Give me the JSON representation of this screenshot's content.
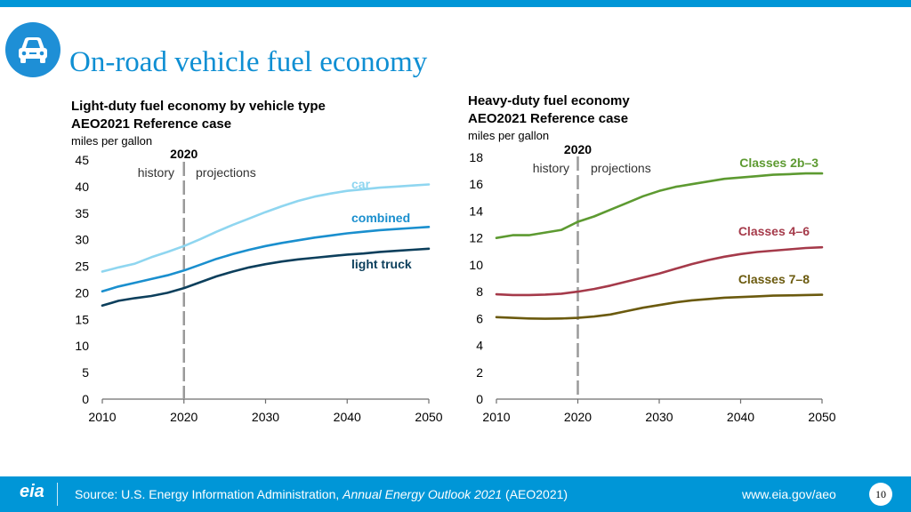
{
  "title": "On-road vehicle fuel economy",
  "light_header": {
    "line1": "Light-duty fuel economy by vehicle type",
    "line2": "AEO2021 Reference case",
    "units": "miles per gallon"
  },
  "heavy_header": {
    "line1": "Heavy-duty fuel economy",
    "line2": "AEO2021 Reference case",
    "units": "miles per gallon"
  },
  "colors": {
    "car": "#8fd6f0",
    "combined": "#1a8fce",
    "light_truck": "#0c3f5c",
    "classes_2b3": "#5d9a31",
    "classes_46": "#a53a4a",
    "classes_78": "#6b5a0e",
    "accent": "#0096d7"
  },
  "chart_data": [
    {
      "type": "line",
      "title": "Light-duty fuel economy by vehicle type",
      "ylabel": "miles per gallon",
      "x": [
        2010,
        2012,
        2014,
        2016,
        2018,
        2020,
        2022,
        2024,
        2026,
        2028,
        2030,
        2032,
        2034,
        2036,
        2038,
        2040,
        2042,
        2044,
        2046,
        2048,
        2050
      ],
      "xlim": [
        2010,
        2050
      ],
      "ylim": [
        0,
        45
      ],
      "xticks": [
        2010,
        2020,
        2030,
        2040,
        2050
      ],
      "yticks": [
        0,
        5,
        10,
        15,
        20,
        25,
        30,
        35,
        40,
        45
      ],
      "divider_year": 2020,
      "divider_label": "2020",
      "history_label": "history",
      "projections_label": "projections",
      "series": [
        {
          "name": "car",
          "color_key": "car",
          "values": [
            24.0,
            24.8,
            25.5,
            26.7,
            27.7,
            28.8,
            30.1,
            31.5,
            32.8,
            34.0,
            35.2,
            36.3,
            37.3,
            38.1,
            38.7,
            39.2,
            39.5,
            39.8,
            40.0,
            40.2,
            40.4
          ]
        },
        {
          "name": "combined",
          "color_key": "combined",
          "values": [
            20.3,
            21.2,
            21.9,
            22.6,
            23.3,
            24.2,
            25.3,
            26.4,
            27.3,
            28.1,
            28.8,
            29.4,
            29.9,
            30.4,
            30.8,
            31.2,
            31.5,
            31.8,
            32.0,
            32.2,
            32.4
          ]
        },
        {
          "name": "light truck",
          "color_key": "light_truck",
          "values": [
            17.6,
            18.5,
            19.0,
            19.4,
            20.0,
            20.9,
            22.0,
            23.1,
            24.0,
            24.8,
            25.4,
            25.9,
            26.3,
            26.6,
            26.9,
            27.2,
            27.4,
            27.7,
            27.9,
            28.1,
            28.3
          ]
        }
      ]
    },
    {
      "type": "line",
      "title": "Heavy-duty fuel economy",
      "ylabel": "miles per gallon",
      "x": [
        2010,
        2012,
        2014,
        2016,
        2018,
        2020,
        2022,
        2024,
        2026,
        2028,
        2030,
        2032,
        2034,
        2036,
        2038,
        2040,
        2042,
        2044,
        2046,
        2048,
        2050
      ],
      "xlim": [
        2010,
        2050
      ],
      "ylim": [
        0,
        18
      ],
      "xticks": [
        2010,
        2020,
        2030,
        2040,
        2050
      ],
      "yticks": [
        0,
        2,
        4,
        6,
        8,
        10,
        12,
        14,
        16,
        18
      ],
      "divider_year": 2020,
      "divider_label": "2020",
      "history_label": "history",
      "projections_label": "projections",
      "series": [
        {
          "name": "Classes 2b–3",
          "color_key": "classes_2b3",
          "values": [
            12.0,
            12.2,
            12.2,
            12.4,
            12.6,
            13.2,
            13.6,
            14.1,
            14.6,
            15.1,
            15.5,
            15.8,
            16.0,
            16.2,
            16.4,
            16.5,
            16.6,
            16.7,
            16.75,
            16.8,
            16.8
          ]
        },
        {
          "name": "Classes 4–6",
          "color_key": "classes_46",
          "values": [
            7.8,
            7.75,
            7.75,
            7.78,
            7.85,
            8.0,
            8.2,
            8.45,
            8.75,
            9.05,
            9.35,
            9.7,
            10.05,
            10.35,
            10.6,
            10.8,
            10.95,
            11.05,
            11.15,
            11.25,
            11.3
          ]
        },
        {
          "name": "Classes 7–8",
          "color_key": "classes_78",
          "values": [
            6.1,
            6.05,
            6.0,
            5.98,
            6.0,
            6.05,
            6.15,
            6.3,
            6.55,
            6.8,
            7.0,
            7.2,
            7.35,
            7.45,
            7.55,
            7.6,
            7.65,
            7.7,
            7.72,
            7.75,
            7.77
          ]
        }
      ]
    }
  ],
  "footer": {
    "logo": "eia",
    "source_prefix": "Source: U.S. Energy Information Administration, ",
    "source_italic": "Annual Energy Outlook 2021",
    "source_suffix": " (AEO2021)",
    "url": "www.eia.gov/aeo",
    "page": "10"
  }
}
